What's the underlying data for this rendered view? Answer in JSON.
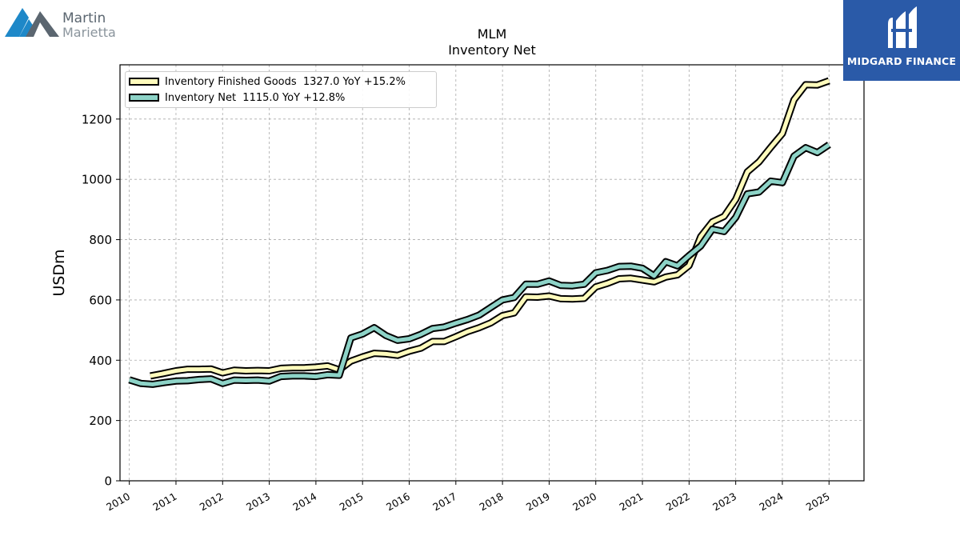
{
  "logos": {
    "left": {
      "line1": "Martin",
      "line2": "Marietta",
      "colors": {
        "mountain_blue": "#1e88c8",
        "mountain_gray": "#5b6670"
      }
    },
    "right": {
      "text": "MIDGARD FINANCE",
      "background": "#2a5aa8"
    }
  },
  "chart_data": {
    "type": "line",
    "title": "MLM",
    "subtitle": "Inventory Net",
    "xlabel": "",
    "ylabel": "USDm",
    "ylim": [
      0,
      1380
    ],
    "xlim": [
      2009.8,
      2025.75
    ],
    "yticks": [
      0,
      200,
      400,
      600,
      800,
      1000,
      1200
    ],
    "xticks": [
      2010,
      2011,
      2012,
      2013,
      2014,
      2015,
      2016,
      2017,
      2018,
      2019,
      2020,
      2021,
      2022,
      2023,
      2024,
      2025
    ],
    "grid": true,
    "legend_position": "top-left",
    "series": [
      {
        "name": "Inventory Finished Goods",
        "legend": "Inventory Finished Goods  1327.0 YoY +15.2%",
        "color": "#fffbbc",
        "points": [
          [
            2010.45,
            348
          ],
          [
            2010.7,
            355
          ],
          [
            2011.0,
            365
          ],
          [
            2011.25,
            370
          ],
          [
            2011.5,
            370
          ],
          [
            2011.75,
            371
          ],
          [
            2012.0,
            358
          ],
          [
            2012.25,
            367
          ],
          [
            2012.5,
            365
          ],
          [
            2012.75,
            366
          ],
          [
            2013.0,
            365
          ],
          [
            2013.25,
            373
          ],
          [
            2013.5,
            375
          ],
          [
            2013.75,
            375
          ],
          [
            2014.0,
            377
          ],
          [
            2014.25,
            381
          ],
          [
            2014.5,
            368
          ],
          [
            2014.75,
            397
          ],
          [
            2015.0,
            411
          ],
          [
            2015.25,
            423
          ],
          [
            2015.5,
            421
          ],
          [
            2015.75,
            416
          ],
          [
            2016.0,
            430
          ],
          [
            2016.25,
            440
          ],
          [
            2016.5,
            462
          ],
          [
            2016.75,
            462
          ],
          [
            2017.0,
            478
          ],
          [
            2017.25,
            495
          ],
          [
            2017.5,
            508
          ],
          [
            2017.75,
            524
          ],
          [
            2018.0,
            548
          ],
          [
            2018.25,
            557
          ],
          [
            2018.5,
            610
          ],
          [
            2018.75,
            609
          ],
          [
            2019.0,
            613
          ],
          [
            2019.25,
            604
          ],
          [
            2019.5,
            603
          ],
          [
            2019.75,
            605
          ],
          [
            2020.0,
            643
          ],
          [
            2020.25,
            655
          ],
          [
            2020.5,
            670
          ],
          [
            2020.75,
            672
          ],
          [
            2021.0,
            666
          ],
          [
            2021.25,
            660
          ],
          [
            2021.5,
            676
          ],
          [
            2021.75,
            683
          ],
          [
            2022.0,
            714
          ],
          [
            2022.25,
            810
          ],
          [
            2022.5,
            859
          ],
          [
            2022.75,
            877
          ],
          [
            2023.0,
            934
          ],
          [
            2023.25,
            1025
          ],
          [
            2023.5,
            1058
          ],
          [
            2023.75,
            1106
          ],
          [
            2024.0,
            1152
          ],
          [
            2024.25,
            1264
          ],
          [
            2024.5,
            1314
          ],
          [
            2024.75,
            1313
          ],
          [
            2025.0,
            1327
          ]
        ]
      },
      {
        "name": "Inventory Net",
        "legend": "Inventory Net  1115.0 YoY +12.8%",
        "color": "#8dd3c7",
        "points": [
          [
            2010.0,
            335
          ],
          [
            2010.25,
            323
          ],
          [
            2010.5,
            320
          ],
          [
            2010.75,
            326
          ],
          [
            2011.0,
            331
          ],
          [
            2011.25,
            332
          ],
          [
            2011.5,
            336
          ],
          [
            2011.75,
            338
          ],
          [
            2012.0,
            323
          ],
          [
            2012.25,
            334
          ],
          [
            2012.5,
            333
          ],
          [
            2012.75,
            334
          ],
          [
            2013.0,
            331
          ],
          [
            2013.25,
            346
          ],
          [
            2013.5,
            348
          ],
          [
            2013.75,
            348
          ],
          [
            2014.0,
            346
          ],
          [
            2014.25,
            352
          ],
          [
            2014.5,
            350
          ],
          [
            2014.75,
            474
          ],
          [
            2015.0,
            487
          ],
          [
            2015.25,
            508
          ],
          [
            2015.5,
            482
          ],
          [
            2015.75,
            466
          ],
          [
            2016.0,
            471
          ],
          [
            2016.25,
            486
          ],
          [
            2016.5,
            505
          ],
          [
            2016.75,
            510
          ],
          [
            2017.0,
            523
          ],
          [
            2017.25,
            535
          ],
          [
            2017.5,
            550
          ],
          [
            2017.75,
            575
          ],
          [
            2018.0,
            600
          ],
          [
            2018.25,
            608
          ],
          [
            2018.5,
            652
          ],
          [
            2018.75,
            652
          ],
          [
            2019.0,
            663
          ],
          [
            2019.25,
            648
          ],
          [
            2019.5,
            647
          ],
          [
            2019.75,
            652
          ],
          [
            2020.0,
            690
          ],
          [
            2020.25,
            698
          ],
          [
            2020.5,
            711
          ],
          [
            2020.75,
            712
          ],
          [
            2021.0,
            705
          ],
          [
            2021.25,
            680
          ],
          [
            2021.5,
            727
          ],
          [
            2021.75,
            713
          ],
          [
            2022.0,
            747
          ],
          [
            2022.25,
            779
          ],
          [
            2022.5,
            835
          ],
          [
            2022.75,
            827
          ],
          [
            2023.0,
            874
          ],
          [
            2023.25,
            952
          ],
          [
            2023.5,
            958
          ],
          [
            2023.75,
            994
          ],
          [
            2024.0,
            989
          ],
          [
            2024.25,
            1077
          ],
          [
            2024.5,
            1105
          ],
          [
            2024.75,
            1089
          ],
          [
            2025.0,
            1115
          ]
        ]
      }
    ]
  }
}
